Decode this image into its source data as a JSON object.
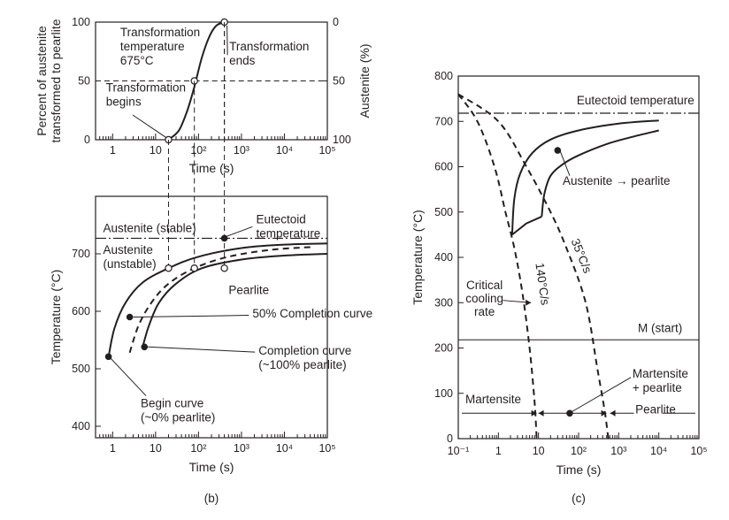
{
  "chart_data": [
    {
      "id": "top",
      "type": "line",
      "title": "",
      "xlabel": "Time (s)",
      "ylabel_left": [
        "Percent of austenite",
        "transformed to pearlite"
      ],
      "ylabel_right": "Austenite (%)",
      "x_scale": "log",
      "xlim": [
        0.4,
        100000
      ],
      "ylim": [
        0,
        100
      ],
      "x_ticks": [
        {
          "v": 1,
          "label": "1"
        },
        {
          "v": 10,
          "label": "10"
        },
        {
          "v": 100,
          "label": "10²"
        },
        {
          "v": 1000,
          "label": "10³"
        },
        {
          "v": 10000,
          "label": "10⁴"
        },
        {
          "v": 100000,
          "label": "10⁵"
        }
      ],
      "y_ticks_left": [
        {
          "v": 0,
          "label": "0"
        },
        {
          "v": 50,
          "label": "50"
        },
        {
          "v": 100,
          "label": "100"
        }
      ],
      "y_ticks_right": [
        {
          "v": 100,
          "label": "0"
        },
        {
          "v": 50,
          "label": "50"
        },
        {
          "v": 0,
          "label": "100"
        }
      ],
      "series": [
        {
          "x": [
            20,
            35,
            55,
            80,
            120,
            180,
            260,
            400
          ],
          "y": [
            0,
            8,
            25,
            45,
            70,
            88,
            97,
            100
          ]
        }
      ],
      "points": [
        {
          "x": 20,
          "y": 0
        },
        {
          "x": 80,
          "y": 50
        },
        {
          "x": 400,
          "y": 100
        }
      ],
      "annotations": [
        {
          "lines": [
            "Transformation",
            "temperature",
            "675°C"
          ],
          "x": 1.5,
          "y": 88
        },
        {
          "lines": [
            "Transformation",
            "ends"
          ],
          "x": 520,
          "y": 76
        },
        {
          "lines": [
            "Transformation",
            "begins"
          ],
          "x": 0.7,
          "y": 41
        }
      ]
    },
    {
      "id": "b",
      "type": "line",
      "panel_label": "(b)",
      "xlabel": "Time (s)",
      "ylabel": "Temperature (°C)",
      "x_scale": "log",
      "xlim": [
        0.4,
        100000
      ],
      "ylim": [
        380,
        800
      ],
      "x_ticks": [
        {
          "v": 1,
          "label": "1"
        },
        {
          "v": 10,
          "label": "10"
        },
        {
          "v": 100,
          "label": "10²"
        },
        {
          "v": 1000,
          "label": "10³"
        },
        {
          "v": 10000,
          "label": "10⁴"
        },
        {
          "v": 100000,
          "label": "10⁵"
        }
      ],
      "y_ticks": [
        {
          "v": 400,
          "label": "400"
        },
        {
          "v": 500,
          "label": "500"
        },
        {
          "v": 600,
          "label": "600"
        },
        {
          "v": 700,
          "label": "700"
        }
      ],
      "eutectoid_temperature": 727,
      "series": [
        {
          "x": [
            0.8,
            1.1,
            2,
            5,
            20,
            100,
            1000,
            10000,
            100000
          ],
          "y": [
            520,
            570,
            615,
            650,
            675,
            695,
            710,
            716,
            718
          ],
          "style": "solid"
        },
        {
          "x": [
            2.5,
            4,
            8,
            20,
            80,
            500,
            5000,
            50000
          ],
          "y": [
            528,
            575,
            615,
            648,
            675,
            695,
            707,
            712
          ],
          "style": "dashed"
        },
        {
          "x": [
            5,
            7,
            12,
            30,
            120,
            1000,
            10000,
            100000
          ],
          "y": [
            538,
            575,
            615,
            648,
            675,
            690,
            697,
            700
          ],
          "style": "solid"
        }
      ],
      "points": [
        {
          "x": 0.8,
          "y": 521
        },
        {
          "x": 20,
          "y": 675
        },
        {
          "x": 80,
          "y": 675
        },
        {
          "x": 400,
          "y": 675
        },
        {
          "x": 400,
          "y": 727
        },
        {
          "x": 2.5,
          "y": 590
        },
        {
          "x": 5.5,
          "y": 538
        }
      ],
      "annotations": [
        {
          "lines": [
            "Austenite (stable)"
          ],
          "x": 0.6,
          "y": 738
        },
        {
          "lines": [
            "Eutectoid",
            "temperature"
          ],
          "x": 2200,
          "y": 753
        },
        {
          "lines": [
            "Austenite",
            "(unstable)"
          ],
          "x": 0.6,
          "y": 700
        },
        {
          "lines": [
            "Pearlite"
          ],
          "x": 500,
          "y": 630
        },
        {
          "lines": [
            "50% Completion curve"
          ],
          "x": 1800,
          "y": 589
        },
        {
          "lines": [
            "Completion curve",
            "(~100% pearlite)"
          ],
          "x": 2500,
          "y": 525
        },
        {
          "lines": [
            "Begin curve",
            "(~0% pearlite)"
          ],
          "x": 4.5,
          "y": 433
        }
      ]
    },
    {
      "id": "c",
      "type": "line",
      "panel_label": "(c)",
      "xlabel": "Time (s)",
      "ylabel": "Temperature (°C)",
      "x_scale": "log",
      "xlim": [
        0.1,
        100000
      ],
      "ylim": [
        0,
        800
      ],
      "x_ticks": [
        {
          "v": 0.1,
          "label": "10⁻¹"
        },
        {
          "v": 1,
          "label": "1"
        },
        {
          "v": 10,
          "label": "10"
        },
        {
          "v": 100,
          "label": "10²"
        },
        {
          "v": 1000,
          "label": "10³"
        },
        {
          "v": 10000,
          "label": "10⁴"
        },
        {
          "v": 100000,
          "label": "10⁵"
        }
      ],
      "y_ticks": [
        {
          "v": 0,
          "label": "0"
        },
        {
          "v": 100,
          "label": "100"
        },
        {
          "v": 200,
          "label": "200"
        },
        {
          "v": 300,
          "label": "300"
        },
        {
          "v": 400,
          "label": "400"
        },
        {
          "v": 500,
          "label": "500"
        },
        {
          "v": 600,
          "label": "600"
        },
        {
          "v": 700,
          "label": "700"
        },
        {
          "v": 800,
          "label": "800"
        }
      ],
      "eutectoid_temperature": 718,
      "m_start": 218,
      "series": [
        {
          "x": [
            2.2,
            2.5,
            3.5,
            7,
            20,
            100,
            1000,
            10000
          ],
          "y": [
            450,
            530,
            585,
            630,
            660,
            680,
            695,
            702
          ],
          "style": "solid"
        },
        {
          "x": [
            12,
            14,
            20,
            40,
            100,
            500,
            2000,
            10000
          ],
          "y": [
            490,
            540,
            580,
            605,
            625,
            650,
            665,
            680
          ],
          "style": "solid"
        },
        {
          "x": [
            2.2,
            5,
            12
          ],
          "y": [
            450,
            475,
            490
          ],
          "style": "solid"
        },
        {
          "x": [
            0.1,
            0.3,
            0.8,
            1.5,
            2.5,
            4,
            6,
            8,
            9
          ],
          "y": [
            760,
            700,
            600,
            500,
            420,
            320,
            200,
            80,
            0
          ],
          "style": "dashed"
        },
        {
          "x": [
            0.1,
            1,
            5,
            20,
            50,
            150,
            300,
            450,
            550
          ],
          "y": [
            760,
            700,
            600,
            500,
            420,
            300,
            150,
            60,
            0
          ],
          "style": "dashed"
        }
      ],
      "points": [
        {
          "x": 30,
          "y": 636
        },
        {
          "x": 60,
          "y": 56
        }
      ],
      "annotations": [
        {
          "lines": [
            "Eutectoid temperature"
          ],
          "x": 90,
          "y": 738
        },
        {
          "lines": [
            "Austenite → pearlite"
          ],
          "x": 40,
          "y": 560
        },
        {
          "lines": [
            "35°C/s"
          ],
          "x": 95,
          "y": 400
        },
        {
          "lines": [
            "140°C/s"
          ],
          "x": 10,
          "y": 340
        },
        {
          "lines": [
            "Critical",
            "cooling",
            "rate"
          ],
          "x": 0.45,
          "y": 330
        },
        {
          "lines": [
            "M (start)"
          ],
          "x": 3000,
          "y": 235
        },
        {
          "lines": [
            "Martensite",
            "+ pearlite"
          ],
          "x": 2200,
          "y": 135
        },
        {
          "lines": [
            "Martensite"
          ],
          "x": 0.15,
          "y": 78
        },
        {
          "lines": [
            "Pearlite"
          ],
          "x": 2600,
          "y": 56
        }
      ],
      "arrow_row_y": 56
    }
  ]
}
